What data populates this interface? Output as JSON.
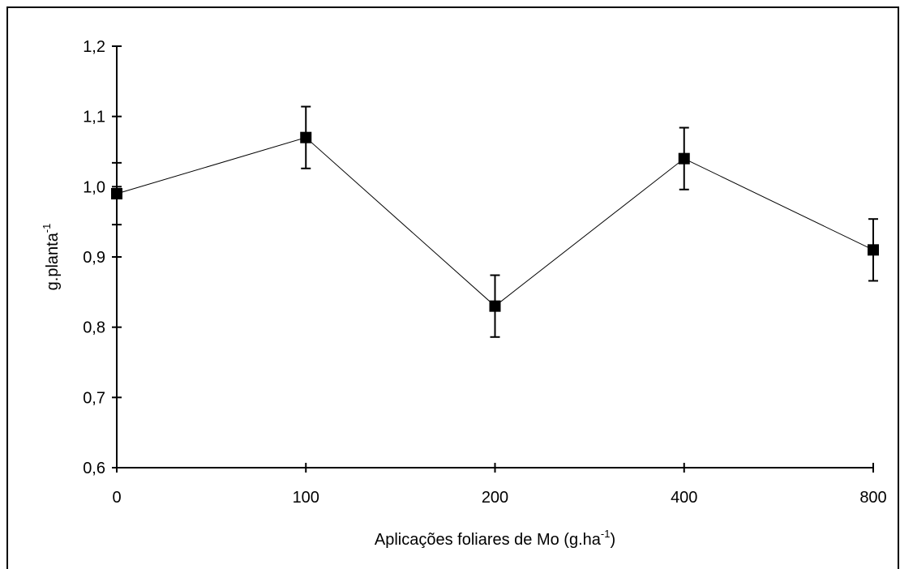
{
  "chart_data": {
    "type": "line",
    "categories": [
      "0",
      "100",
      "200",
      "400",
      "800"
    ],
    "values": [
      0.99,
      1.07,
      0.83,
      1.04,
      0.91
    ],
    "error": [
      0.044,
      0.044,
      0.044,
      0.044,
      0.044
    ],
    "xlabel": {
      "base": "Aplicações foliares de Mo (g.ha",
      "sup": "-1",
      "tail": ")"
    },
    "ylabel": {
      "base": "g.planta",
      "sup": "-1"
    },
    "ylim": [
      0.6,
      1.2
    ],
    "yticks": [
      0.6,
      0.7,
      0.8,
      0.9,
      1.0,
      1.1,
      1.2
    ],
    "ytick_labels": [
      "0,6",
      "0,7",
      "0,8",
      "0,9",
      "1,0",
      "1,1",
      "1,2"
    ],
    "grid": false,
    "marker": "square",
    "line_color": "#000000",
    "marker_color": "#000000"
  }
}
